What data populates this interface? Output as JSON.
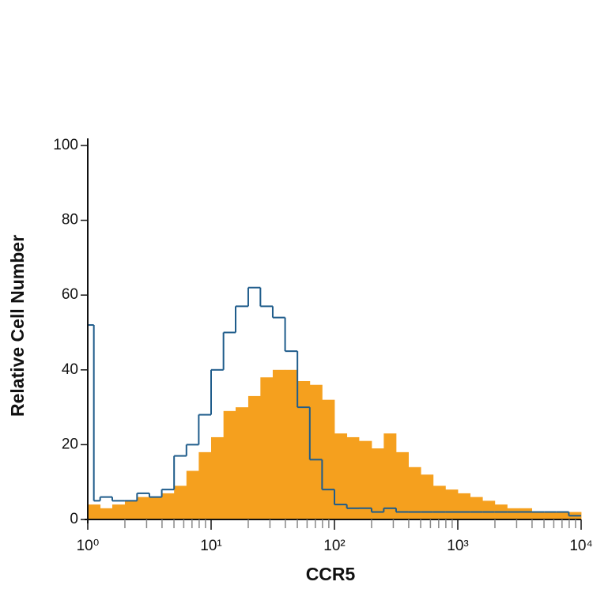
{
  "chart_data": {
    "type": "histogram",
    "x_label": "CCR5",
    "y_label": "Relative Cell Number",
    "xscale": "log",
    "xlim": [
      1,
      10000
    ],
    "xticks": [
      {
        "value": 1,
        "label": "10⁰"
      },
      {
        "value": 10,
        "label": "10¹"
      },
      {
        "value": 100,
        "label": "10²"
      },
      {
        "value": 1000,
        "label": "10³"
      },
      {
        "value": 10000,
        "label": "10⁴"
      }
    ],
    "x_minor_ticks": [
      2,
      3,
      4,
      5,
      6,
      7,
      8,
      9,
      20,
      30,
      40,
      50,
      60,
      70,
      80,
      90,
      200,
      300,
      400,
      500,
      600,
      700,
      800,
      900,
      2000,
      3000,
      4000,
      5000,
      6000,
      7000,
      8000,
      9000
    ],
    "ylim": [
      0,
      100
    ],
    "yticks": [
      0,
      20,
      40,
      60,
      80,
      100
    ],
    "bins": [
      1,
      1.12,
      1.26,
      1.58,
      2,
      2.51,
      3.16,
      3.98,
      5.01,
      6.31,
      7.94,
      10,
      12.6,
      15.8,
      20,
      25.1,
      31.6,
      39.8,
      50.1,
      63.1,
      79.4,
      100,
      126,
      158,
      200,
      251,
      316,
      398,
      501,
      631,
      794,
      1000,
      1259,
      1585,
      1995,
      2512,
      3162,
      3981,
      5012,
      6310,
      7943,
      10000
    ],
    "series": [
      {
        "color": "#f5a01e",
        "style": "filled",
        "values": [
          4,
          4,
          3,
          4,
          5,
          6,
          6,
          7,
          9,
          13,
          18,
          22,
          29,
          30,
          33,
          38,
          40,
          40,
          37,
          36,
          32,
          23,
          22,
          21,
          19,
          23,
          18,
          14,
          12,
          9,
          8,
          7,
          6,
          5,
          4,
          3,
          3,
          2,
          2,
          2,
          2
        ]
      },
      {
        "color": "#1f5c8b",
        "style": "outline",
        "values": [
          52,
          5,
          6,
          5,
          5,
          7,
          6,
          8,
          17,
          20,
          28,
          40,
          50,
          57,
          62,
          57,
          54,
          45,
          30,
          16,
          8,
          4,
          3,
          3,
          2,
          3,
          2,
          2,
          2,
          2,
          2,
          2,
          2,
          2,
          2,
          2,
          2,
          2,
          2,
          2,
          1
        ]
      }
    ]
  }
}
